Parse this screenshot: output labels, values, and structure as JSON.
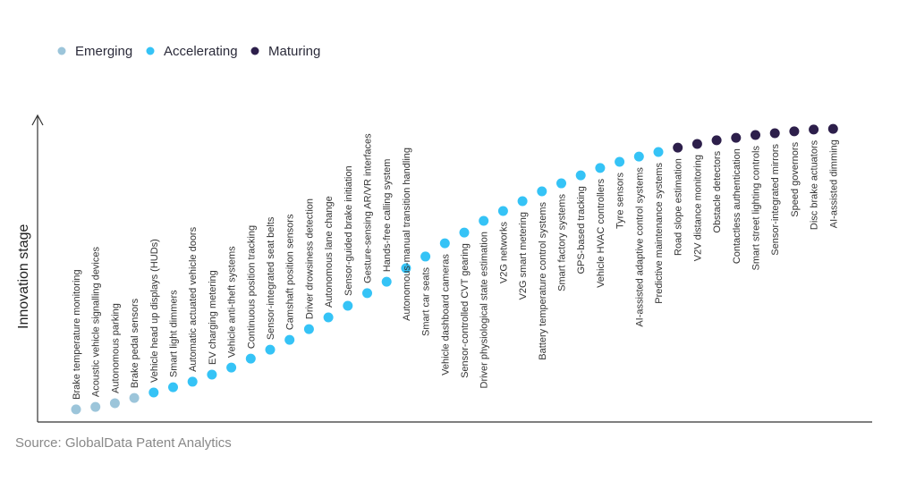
{
  "chart_data": {
    "type": "scatter",
    "ylabel": "Innovation stage",
    "source": "Source: GlobalData Patent Analytics",
    "legend_position": "top-left",
    "grid": false,
    "ylim": [
      0,
      100
    ],
    "legend": [
      {
        "key": "emerging",
        "label": "Emerging",
        "color": "#9cc5da"
      },
      {
        "key": "accelerating",
        "label": "Accelerating",
        "color": "#35c3f6"
      },
      {
        "key": "maturing",
        "label": "Maturing",
        "color": "#2d1f4b"
      }
    ],
    "points": [
      {
        "label": "Brake temperature monitoring",
        "stage": 4.1,
        "category": "emerging"
      },
      {
        "label": "Acoustic vehicle signalling devices",
        "stage": 4.9,
        "category": "emerging"
      },
      {
        "label": "Autonomous parking",
        "stage": 6.1,
        "category": "emerging"
      },
      {
        "label": "Brake pedal sensors",
        "stage": 7.8,
        "category": "emerging"
      },
      {
        "label": "Vehicle head up displays (HUDs)",
        "stage": 9.6,
        "category": "accelerating"
      },
      {
        "label": "Smart light dimmers",
        "stage": 11.3,
        "category": "accelerating"
      },
      {
        "label": "Automatic actuated vehicle doors",
        "stage": 13.1,
        "category": "accelerating"
      },
      {
        "label": "EV charging metering",
        "stage": 15.4,
        "category": "accelerating"
      },
      {
        "label": "Vehicle anti-theft systems",
        "stage": 17.7,
        "category": "accelerating"
      },
      {
        "label": "Continuous position tracking",
        "stage": 20.6,
        "category": "accelerating"
      },
      {
        "label": "Sensor-integrated seat belts",
        "stage": 23.5,
        "category": "accelerating"
      },
      {
        "label": "Camshaft position sensors",
        "stage": 26.7,
        "category": "accelerating"
      },
      {
        "label": "Driver drowsiness detection",
        "stage": 30.2,
        "category": "accelerating"
      },
      {
        "label": "Autonomous lane change",
        "stage": 34.0,
        "category": "accelerating"
      },
      {
        "label": "Sensor-guided brake initiation",
        "stage": 37.8,
        "category": "accelerating"
      },
      {
        "label": "Gesture-sensing AR/VR interfaces",
        "stage": 41.9,
        "category": "accelerating"
      },
      {
        "label": "Hands-free calling system",
        "stage": 45.6,
        "category": "accelerating"
      },
      {
        "label": "Autonomous-manual transition handling",
        "stage": 50.0,
        "category": "accelerating"
      },
      {
        "label": "Smart car seats",
        "stage": 53.8,
        "category": "accelerating"
      },
      {
        "label": "Vehicle dashboard cameras",
        "stage": 58.1,
        "category": "accelerating"
      },
      {
        "label": "Sensor-controlled CVT gearing",
        "stage": 61.6,
        "category": "accelerating"
      },
      {
        "label": "Driver physiological state estimation",
        "stage": 65.4,
        "category": "accelerating"
      },
      {
        "label": "V2G networks",
        "stage": 68.6,
        "category": "accelerating"
      },
      {
        "label": "V2G smart metering",
        "stage": 71.8,
        "category": "accelerating"
      },
      {
        "label": "Battery temperature control systems",
        "stage": 75.0,
        "category": "accelerating"
      },
      {
        "label": "Smart factory systems",
        "stage": 77.6,
        "category": "accelerating"
      },
      {
        "label": "GPS-based tracking",
        "stage": 80.2,
        "category": "accelerating"
      },
      {
        "label": "Vehicle HVAC controllers",
        "stage": 82.6,
        "category": "accelerating"
      },
      {
        "label": "Tyre sensors",
        "stage": 84.6,
        "category": "accelerating"
      },
      {
        "label": "AI-assisted adaptive control systems",
        "stage": 86.3,
        "category": "accelerating"
      },
      {
        "label": "Predictive maintenance systems",
        "stage": 87.8,
        "category": "accelerating"
      },
      {
        "label": "Road slope estimation",
        "stage": 89.2,
        "category": "maturing"
      },
      {
        "label": "V2V distance monitoring",
        "stage": 90.4,
        "category": "maturing"
      },
      {
        "label": "Obstacle detectors",
        "stage": 91.6,
        "category": "maturing"
      },
      {
        "label": "Contactless authentication",
        "stage": 92.4,
        "category": "maturing"
      },
      {
        "label": "Smart street lighting controls",
        "stage": 93.3,
        "category": "maturing"
      },
      {
        "label": "Sensor-integrated mirrors",
        "stage": 93.9,
        "category": "maturing"
      },
      {
        "label": "Speed governors",
        "stage": 94.5,
        "category": "maturing"
      },
      {
        "label": "Disc brake actuators",
        "stage": 95.1,
        "category": "maturing"
      },
      {
        "label": "AI-assisted dimming",
        "stage": 95.3,
        "category": "maturing"
      }
    ]
  }
}
